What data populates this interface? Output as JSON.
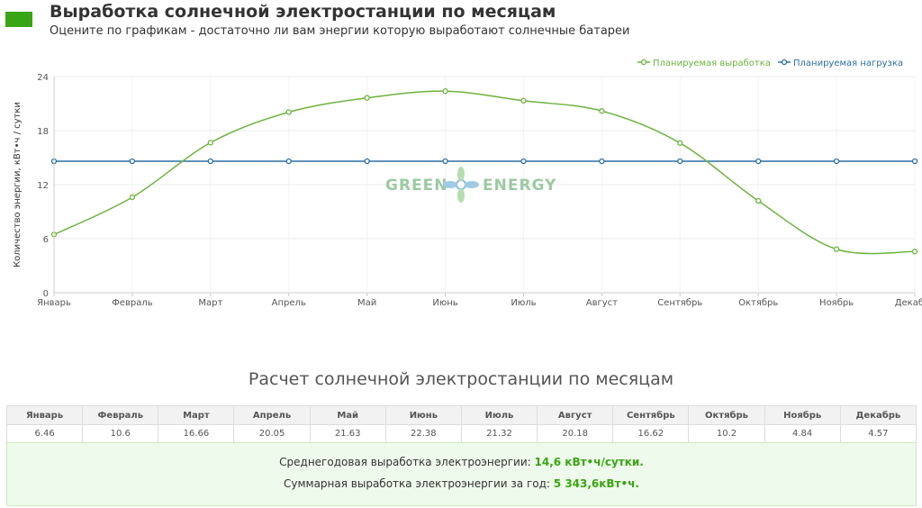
{
  "header": {
    "title": "Выработка солнечной электростанции по месяцам",
    "subtitle": "Оцените по графикам - достаточно ли вам энергии которую выработают солнечные батареи",
    "swatch_color": "#3aa514"
  },
  "logo": {
    "left": "GREEN",
    "right": "ENERGY",
    "icon": "leaf-logo-icon"
  },
  "chart_data": {
    "type": "line",
    "categories": [
      "Январь",
      "Февраль",
      "Март",
      "Апрель",
      "Май",
      "Июнь",
      "Июль",
      "Август",
      "Сентябрь",
      "Октябрь",
      "Ноябрь",
      "Декабрь"
    ],
    "series": [
      {
        "name": "Планируемая выработка",
        "color": "#6db33f",
        "values": [
          6.46,
          10.6,
          16.66,
          20.05,
          21.63,
          22.38,
          21.32,
          20.18,
          16.62,
          10.2,
          4.84,
          4.57
        ]
      },
      {
        "name": "Планируемая нагрузка",
        "color": "#2d6ea3",
        "values": [
          14.6,
          14.6,
          14.6,
          14.6,
          14.6,
          14.6,
          14.6,
          14.6,
          14.6,
          14.6,
          14.6,
          14.6
        ]
      }
    ],
    "yticks": [
      "0",
      "6",
      "12",
      "18",
      "24"
    ],
    "ylim": [
      0,
      24
    ],
    "ylabel": "Количество энергии, кВт•ч / сутки",
    "xlabel": "",
    "grid": true,
    "legend_position": "top-right"
  },
  "table": {
    "title": "Расчет солнечной электростанции по месяцам",
    "headers": [
      "Январь",
      "Февраль",
      "Март",
      "Апрель",
      "Май",
      "Июнь",
      "Июль",
      "Август",
      "Сентябрь",
      "Октябрь",
      "Ноябрь",
      "Декабрь"
    ],
    "values": [
      "6.46",
      "10.6",
      "16.66",
      "20.05",
      "21.63",
      "22.38",
      "21.32",
      "20.18",
      "16.62",
      "10.2",
      "4.84",
      "4.57"
    ]
  },
  "summary": {
    "avg_label": "Среднегодовая выработка электроэнергии:",
    "avg_value": "14,6 кВт•ч/сутки.",
    "total_label": "Суммарная выработка электроэнергии за год:",
    "total_value": "5 343,6кВт•ч."
  }
}
